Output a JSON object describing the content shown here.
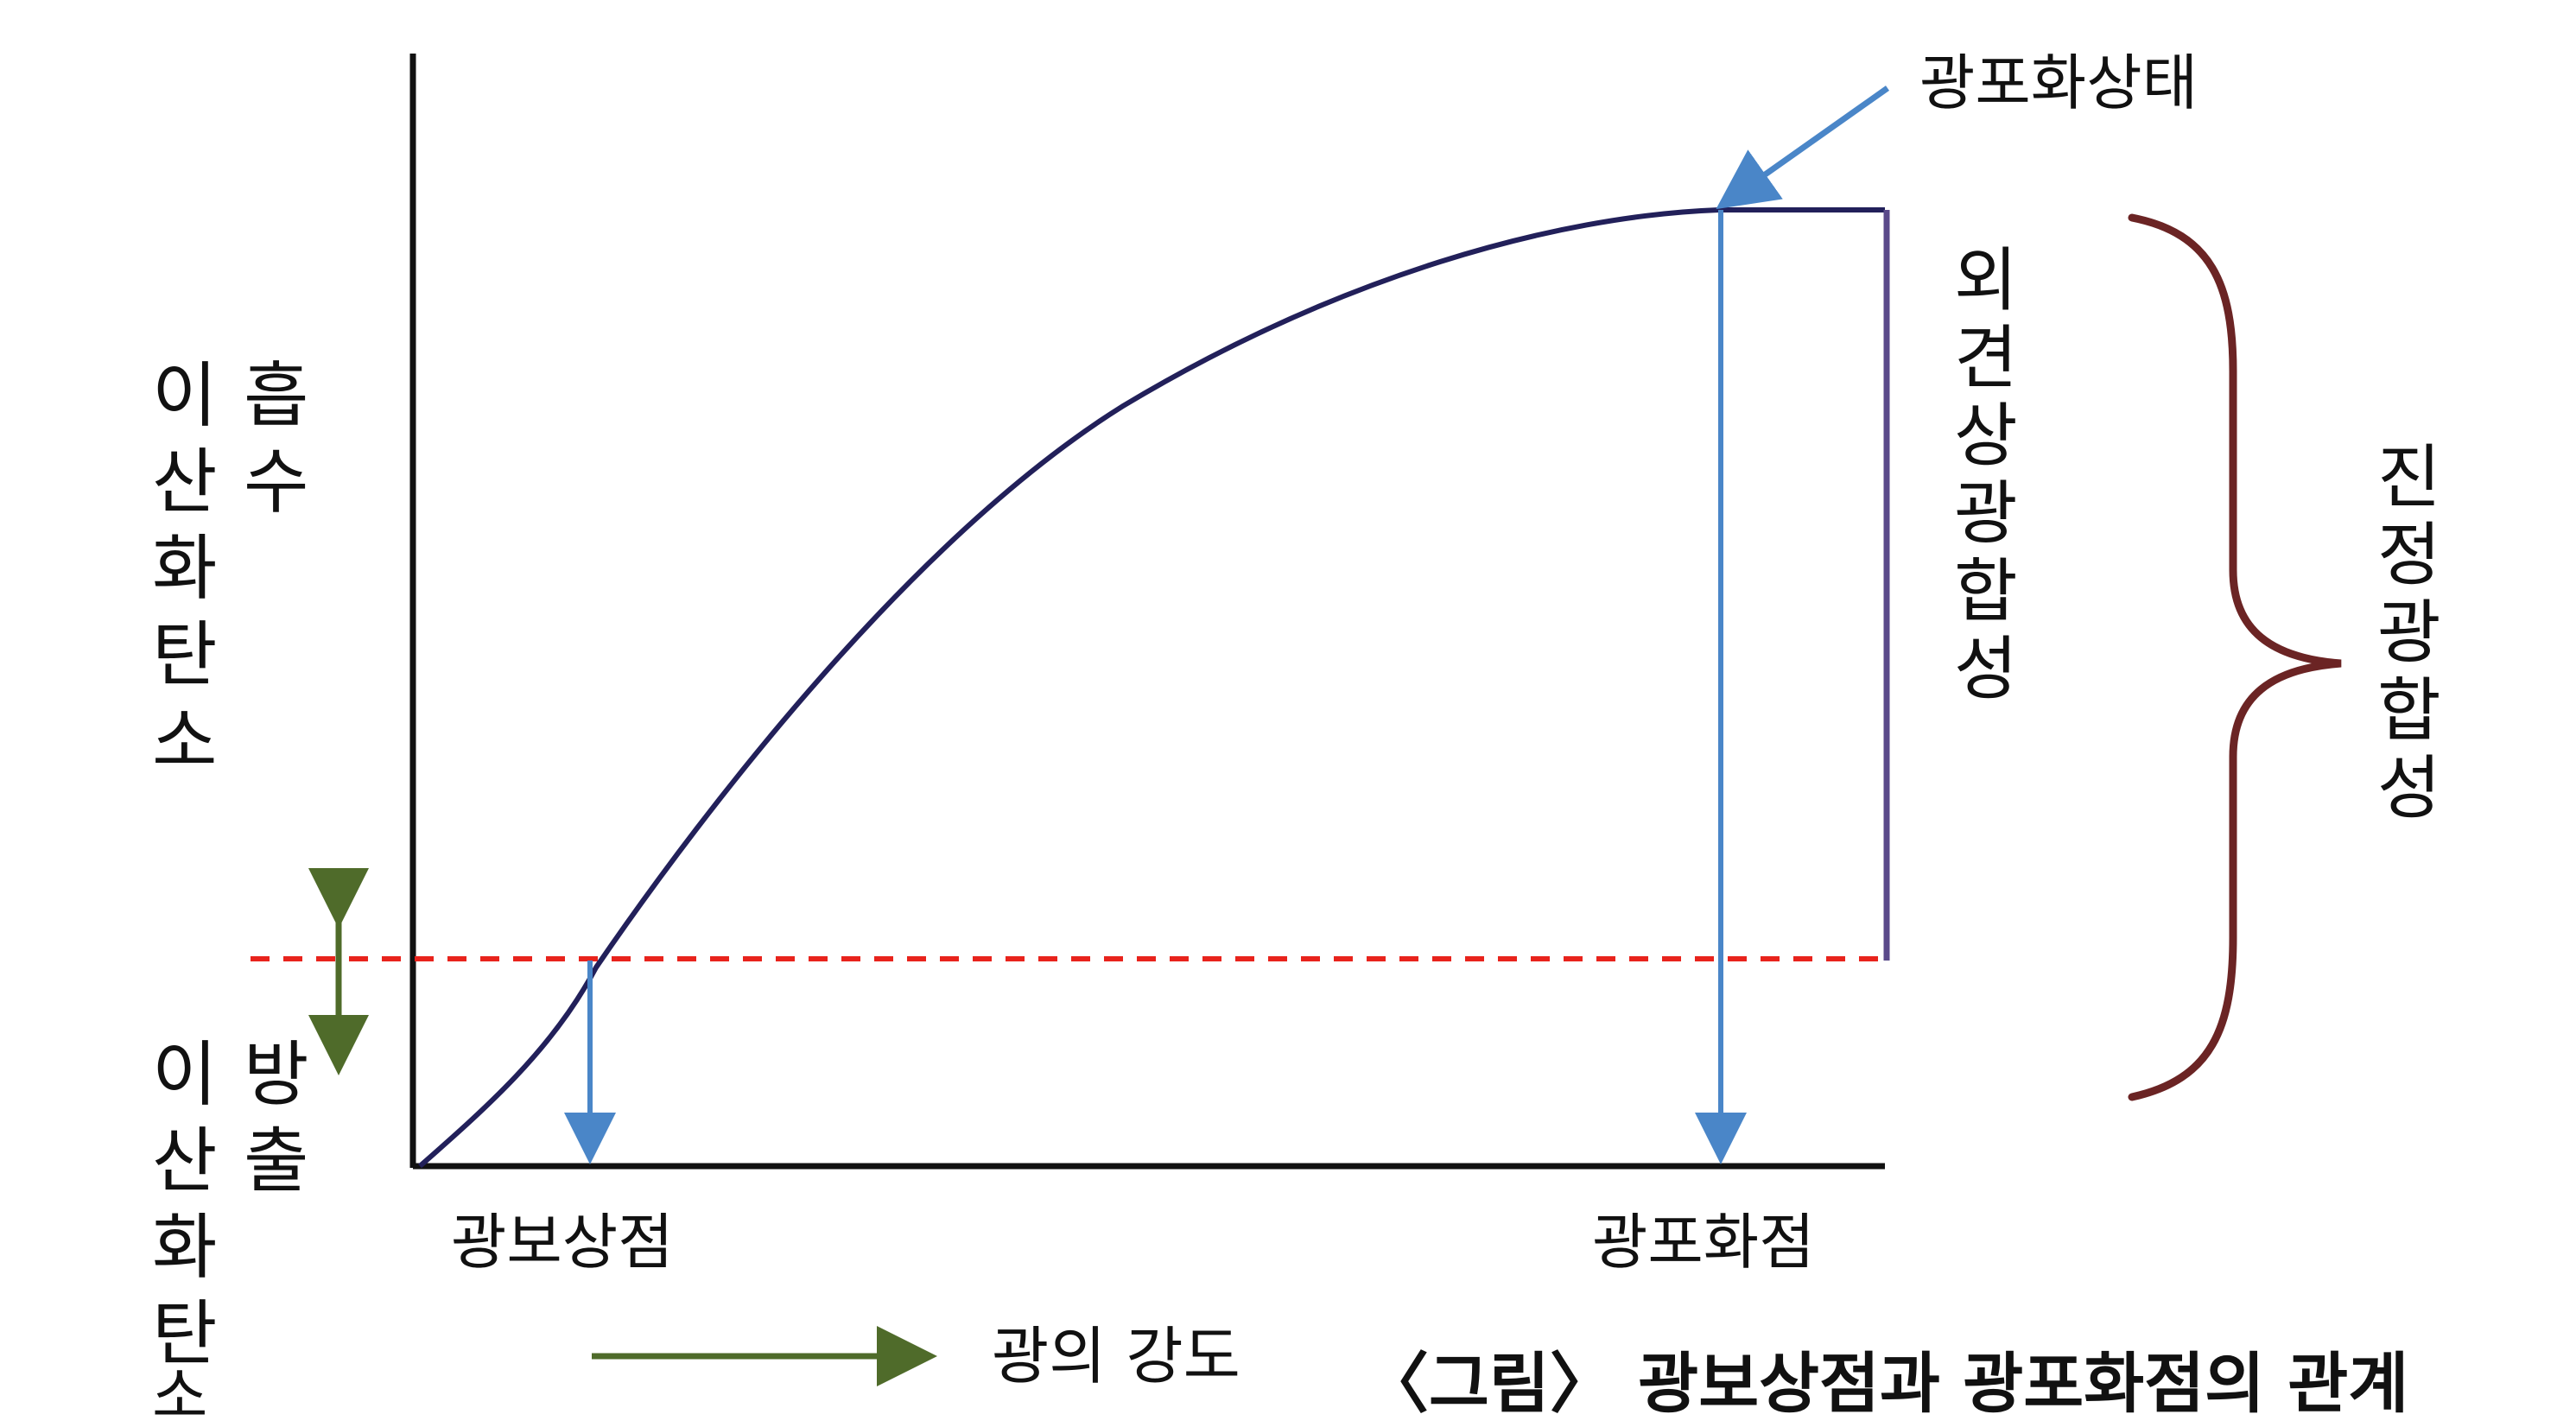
{
  "labels": {
    "light_compensation_point": "광보상점",
    "light_saturation_point": "광포화점",
    "light_saturation_state": "광포화상태",
    "light_intensity": "광의 강도",
    "caption": "〈그림〉 광보상점과 광포화점의 관계"
  },
  "vertical_labels": {
    "co2_absorption": [
      "흡",
      "수"
    ],
    "co2_absorption_prefix": [
      "이",
      "산",
      "화",
      "탄",
      "소"
    ],
    "co2_release": [
      "방",
      "출"
    ],
    "co2_release_prefix": [
      "이",
      "산",
      "화",
      "탄",
      "소"
    ],
    "apparent_photosynthesis": [
      "외",
      "견",
      "상",
      "광",
      "합",
      "성"
    ],
    "true_photosynthesis": [
      "진",
      "정",
      "광",
      "합",
      "성"
    ]
  },
  "colors": {
    "axis": "#111111",
    "curve": "#22205a",
    "blue_arrow": "#4a86c8",
    "red_dashed": "#e8231c",
    "green_arrow": "#4f6b2a",
    "purple_bar": "#5a4a8a",
    "brace": "#6b2424"
  }
}
